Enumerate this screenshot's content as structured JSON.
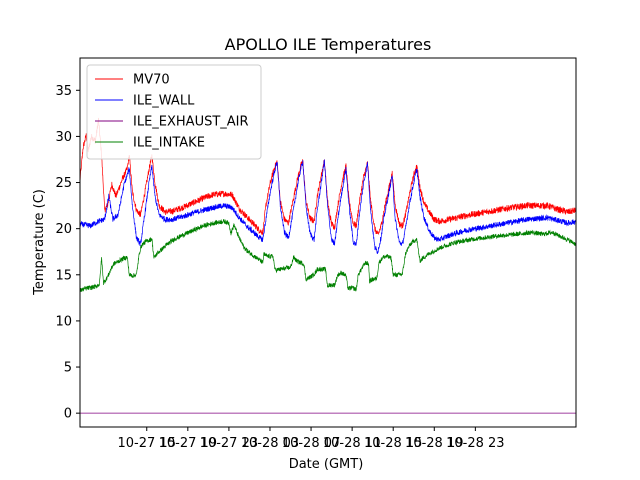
{
  "chart_data": {
    "type": "line",
    "title": "APOLLO ILE Temperatures",
    "xlabel": "Date (GMT)",
    "ylabel": "Temperature (C)",
    "xlim": [
      8.5,
      56.8
    ],
    "ylim": [
      -1.5,
      38.5
    ],
    "x_units": "hours since 2018-10-27 00:00 GMT",
    "x_ticks": [
      {
        "value": 15,
        "label": "10-27 15"
      },
      {
        "value": 19,
        "label": "10-27 19"
      },
      {
        "value": 23,
        "label": "10-27 23"
      },
      {
        "value": 27,
        "label": "10-28 03"
      },
      {
        "value": 31,
        "label": "10-28 07"
      },
      {
        "value": 35,
        "label": "10-28 11"
      },
      {
        "value": 39,
        "label": "10-28 15"
      },
      {
        "value": 43,
        "label": "10-28 19"
      },
      {
        "value": 47,
        "label": "10-28 23"
      }
    ],
    "y_ticks": [
      0,
      5,
      10,
      15,
      20,
      25,
      30,
      35
    ],
    "grid": false,
    "legend_position": "top-left",
    "series": [
      {
        "name": "MV70",
        "color": "#ff0000",
        "noise": 0.35,
        "points": [
          [
            8.5,
            25.2
          ],
          [
            8.8,
            28.8
          ],
          [
            9.1,
            30.1
          ],
          [
            9.3,
            28.4
          ],
          [
            9.6,
            30.0
          ],
          [
            10.0,
            29.5
          ],
          [
            10.3,
            31.8
          ],
          [
            10.6,
            28.0
          ],
          [
            10.9,
            22.0
          ],
          [
            11.2,
            22.6
          ],
          [
            11.6,
            24.8
          ],
          [
            12.0,
            23.5
          ],
          [
            12.6,
            25.3
          ],
          [
            13.1,
            26.5
          ],
          [
            13.3,
            28.0
          ],
          [
            13.6,
            24.0
          ],
          [
            14.0,
            22.0
          ],
          [
            14.4,
            21.5
          ],
          [
            14.8,
            23.8
          ],
          [
            15.2,
            26.3
          ],
          [
            15.5,
            27.9
          ],
          [
            15.8,
            25.0
          ],
          [
            16.2,
            22.5
          ],
          [
            16.8,
            21.8
          ],
          [
            17.5,
            21.9
          ],
          [
            18.5,
            22.3
          ],
          [
            19.5,
            22.8
          ],
          [
            20.5,
            23.3
          ],
          [
            21.5,
            23.7
          ],
          [
            22.5,
            23.8
          ],
          [
            23.3,
            23.7
          ],
          [
            24.0,
            22.2
          ],
          [
            24.8,
            21.2
          ],
          [
            25.5,
            20.4
          ],
          [
            26.0,
            19.8
          ],
          [
            26.3,
            19.6
          ],
          [
            26.6,
            22.5
          ],
          [
            27.0,
            24.8
          ],
          [
            27.4,
            26.5
          ],
          [
            27.7,
            27.3
          ],
          [
            28.0,
            23.0
          ],
          [
            28.4,
            21.0
          ],
          [
            28.8,
            20.6
          ],
          [
            29.2,
            22.8
          ],
          [
            29.7,
            25.5
          ],
          [
            30.0,
            26.8
          ],
          [
            30.2,
            27.3
          ],
          [
            30.5,
            23.0
          ],
          [
            30.9,
            21.1
          ],
          [
            31.3,
            20.8
          ],
          [
            31.6,
            23.5
          ],
          [
            32.0,
            25.8
          ],
          [
            32.3,
            27.4
          ],
          [
            32.6,
            23.0
          ],
          [
            33.0,
            20.5
          ],
          [
            33.3,
            20.2
          ],
          [
            33.6,
            22.5
          ],
          [
            34.0,
            25.0
          ],
          [
            34.4,
            26.8
          ],
          [
            34.7,
            23.0
          ],
          [
            35.1,
            20.6
          ],
          [
            35.4,
            20.3
          ],
          [
            35.7,
            22.8
          ],
          [
            36.1,
            25.5
          ],
          [
            36.5,
            27.1
          ],
          [
            36.8,
            23.0
          ],
          [
            37.2,
            20.0
          ],
          [
            37.5,
            19.3
          ],
          [
            37.8,
            20.2
          ],
          [
            38.2,
            22.5
          ],
          [
            38.6,
            24.5
          ],
          [
            38.9,
            26.0
          ],
          [
            39.2,
            22.5
          ],
          [
            39.6,
            20.5
          ],
          [
            39.9,
            20.3
          ],
          [
            40.2,
            21.5
          ],
          [
            40.6,
            23.8
          ],
          [
            41.0,
            25.8
          ],
          [
            41.3,
            26.8
          ],
          [
            41.6,
            24.5
          ],
          [
            42.0,
            22.8
          ],
          [
            42.5,
            21.8
          ],
          [
            43.0,
            21.0
          ],
          [
            43.5,
            20.8
          ],
          [
            44.5,
            21.0
          ],
          [
            46.0,
            21.4
          ],
          [
            48.0,
            21.8
          ],
          [
            50.0,
            22.2
          ],
          [
            52.0,
            22.5
          ],
          [
            54.0,
            22.5
          ],
          [
            55.0,
            22.1
          ],
          [
            56.0,
            21.8
          ],
          [
            56.8,
            22.0
          ]
        ]
      },
      {
        "name": "ILE_WALL",
        "color": "#0000ff",
        "noise": 0.3,
        "points": [
          [
            8.5,
            20.5
          ],
          [
            9.5,
            20.3
          ],
          [
            10.3,
            20.8
          ],
          [
            10.9,
            21.0
          ],
          [
            11.3,
            23.5
          ],
          [
            11.7,
            21.0
          ],
          [
            12.2,
            21.5
          ],
          [
            12.8,
            24.8
          ],
          [
            13.3,
            26.5
          ],
          [
            13.6,
            22.5
          ],
          [
            14.0,
            19.0
          ],
          [
            14.4,
            18.3
          ],
          [
            14.8,
            21.5
          ],
          [
            15.2,
            24.8
          ],
          [
            15.5,
            26.8
          ],
          [
            15.8,
            23.5
          ],
          [
            16.2,
            21.5
          ],
          [
            16.8,
            21.0
          ],
          [
            17.5,
            21.0
          ],
          [
            18.5,
            21.3
          ],
          [
            19.5,
            21.7
          ],
          [
            20.5,
            22.0
          ],
          [
            21.5,
            22.3
          ],
          [
            22.5,
            22.5
          ],
          [
            23.3,
            22.3
          ],
          [
            24.0,
            21.2
          ],
          [
            24.8,
            20.2
          ],
          [
            25.5,
            19.5
          ],
          [
            26.0,
            19.0
          ],
          [
            26.3,
            18.8
          ],
          [
            26.6,
            21.0
          ],
          [
            27.0,
            23.8
          ],
          [
            27.4,
            26.0
          ],
          [
            27.7,
            27.3
          ],
          [
            28.0,
            22.5
          ],
          [
            28.4,
            19.6
          ],
          [
            28.8,
            19.0
          ],
          [
            29.2,
            21.5
          ],
          [
            29.7,
            24.8
          ],
          [
            30.0,
            26.5
          ],
          [
            30.2,
            27.3
          ],
          [
            30.5,
            22.5
          ],
          [
            30.9,
            19.5
          ],
          [
            31.3,
            18.8
          ],
          [
            31.6,
            22.0
          ],
          [
            32.0,
            25.0
          ],
          [
            32.3,
            27.4
          ],
          [
            32.6,
            22.5
          ],
          [
            33.0,
            18.8
          ],
          [
            33.3,
            18.3
          ],
          [
            33.6,
            21.0
          ],
          [
            34.0,
            24.0
          ],
          [
            34.4,
            26.5
          ],
          [
            34.7,
            22.5
          ],
          [
            35.1,
            18.6
          ],
          [
            35.4,
            18.2
          ],
          [
            35.7,
            21.5
          ],
          [
            36.1,
            24.8
          ],
          [
            36.5,
            27.1
          ],
          [
            36.8,
            22.0
          ],
          [
            37.2,
            18.0
          ],
          [
            37.5,
            17.5
          ],
          [
            37.8,
            19.0
          ],
          [
            38.2,
            21.8
          ],
          [
            38.6,
            24.0
          ],
          [
            38.9,
            25.8
          ],
          [
            39.2,
            21.0
          ],
          [
            39.6,
            18.5
          ],
          [
            39.9,
            18.3
          ],
          [
            40.2,
            20.0
          ],
          [
            40.6,
            22.8
          ],
          [
            41.0,
            25.0
          ],
          [
            41.3,
            26.5
          ],
          [
            41.6,
            23.5
          ],
          [
            42.0,
            21.2
          ],
          [
            42.5,
            19.8
          ],
          [
            43.0,
            19.0
          ],
          [
            43.5,
            18.8
          ],
          [
            44.5,
            19.3
          ],
          [
            46.0,
            19.8
          ],
          [
            48.0,
            20.2
          ],
          [
            50.0,
            20.6
          ],
          [
            52.0,
            21.0
          ],
          [
            54.0,
            21.2
          ],
          [
            55.0,
            20.9
          ],
          [
            56.0,
            20.6
          ],
          [
            56.8,
            20.8
          ]
        ]
      },
      {
        "name": "ILE_EXHAUST_AIR",
        "color": "#800080",
        "noise": 0,
        "points": [
          [
            8.5,
            0
          ],
          [
            56.8,
            0
          ]
        ]
      },
      {
        "name": "ILE_INTAKE",
        "color": "#008000",
        "noise": 0.25,
        "points": [
          [
            8.5,
            13.3
          ],
          [
            9.0,
            13.5
          ],
          [
            9.5,
            13.6
          ],
          [
            10.0,
            13.7
          ],
          [
            10.4,
            14.0
          ],
          [
            10.6,
            16.8
          ],
          [
            10.8,
            14.1
          ],
          [
            11.2,
            14.8
          ],
          [
            11.5,
            15.6
          ],
          [
            11.8,
            16.2
          ],
          [
            12.3,
            16.5
          ],
          [
            12.8,
            16.8
          ],
          [
            13.1,
            16.9
          ],
          [
            13.3,
            15.0
          ],
          [
            13.6,
            14.9
          ],
          [
            14.0,
            15.0
          ],
          [
            14.3,
            17.5
          ],
          [
            14.5,
            18.2
          ],
          [
            14.9,
            18.6
          ],
          [
            15.3,
            18.8
          ],
          [
            15.5,
            18.9
          ],
          [
            15.7,
            16.8
          ],
          [
            16.0,
            17.3
          ],
          [
            16.5,
            17.8
          ],
          [
            17.0,
            18.3
          ],
          [
            17.6,
            18.8
          ],
          [
            18.5,
            19.3
          ],
          [
            19.5,
            19.8
          ],
          [
            20.5,
            20.3
          ],
          [
            21.5,
            20.6
          ],
          [
            22.5,
            20.8
          ],
          [
            23.0,
            20.6
          ],
          [
            23.2,
            19.5
          ],
          [
            23.5,
            20.4
          ],
          [
            24.0,
            19.0
          ],
          [
            24.5,
            17.9
          ],
          [
            25.0,
            17.4
          ],
          [
            25.5,
            17.0
          ],
          [
            26.0,
            16.6
          ],
          [
            26.3,
            16.3
          ],
          [
            26.4,
            17.2
          ],
          [
            26.8,
            17.0
          ],
          [
            27.3,
            17.0
          ],
          [
            27.5,
            15.5
          ],
          [
            28.0,
            15.6
          ],
          [
            28.5,
            15.7
          ],
          [
            29.0,
            15.8
          ],
          [
            29.3,
            16.9
          ],
          [
            29.6,
            16.5
          ],
          [
            30.0,
            16.3
          ],
          [
            30.3,
            16.2
          ],
          [
            30.5,
            14.5
          ],
          [
            31.0,
            14.8
          ],
          [
            31.4,
            15.2
          ],
          [
            31.6,
            15.6
          ],
          [
            32.0,
            15.6
          ],
          [
            32.4,
            15.6
          ],
          [
            32.6,
            13.8
          ],
          [
            33.0,
            13.9
          ],
          [
            33.3,
            13.9
          ],
          [
            33.6,
            15.0
          ],
          [
            34.0,
            15.2
          ],
          [
            34.4,
            14.9
          ],
          [
            34.6,
            13.5
          ],
          [
            35.0,
            13.6
          ],
          [
            35.4,
            13.4
          ],
          [
            35.6,
            15.0
          ],
          [
            36.0,
            15.8
          ],
          [
            36.3,
            16.3
          ],
          [
            36.6,
            16.2
          ],
          [
            36.7,
            14.3
          ],
          [
            37.0,
            14.5
          ],
          [
            37.4,
            14.6
          ],
          [
            37.6,
            16.3
          ],
          [
            38.0,
            16.9
          ],
          [
            38.4,
            17.0
          ],
          [
            38.8,
            16.8
          ],
          [
            39.0,
            15.0
          ],
          [
            39.5,
            15.0
          ],
          [
            39.9,
            15.1
          ],
          [
            40.2,
            17.3
          ],
          [
            40.6,
            18.2
          ],
          [
            41.0,
            18.7
          ],
          [
            41.3,
            18.8
          ],
          [
            41.6,
            16.5
          ],
          [
            42.0,
            16.9
          ],
          [
            42.5,
            17.3
          ],
          [
            43.5,
            17.9
          ],
          [
            45.0,
            18.5
          ],
          [
            47.0,
            18.9
          ],
          [
            49.0,
            19.2
          ],
          [
            51.0,
            19.4
          ],
          [
            52.5,
            19.6
          ],
          [
            53.5,
            19.4
          ],
          [
            54.5,
            19.6
          ],
          [
            55.2,
            19.2
          ],
          [
            55.8,
            18.9
          ],
          [
            56.5,
            18.5
          ],
          [
            56.8,
            18.3
          ]
        ]
      }
    ]
  }
}
